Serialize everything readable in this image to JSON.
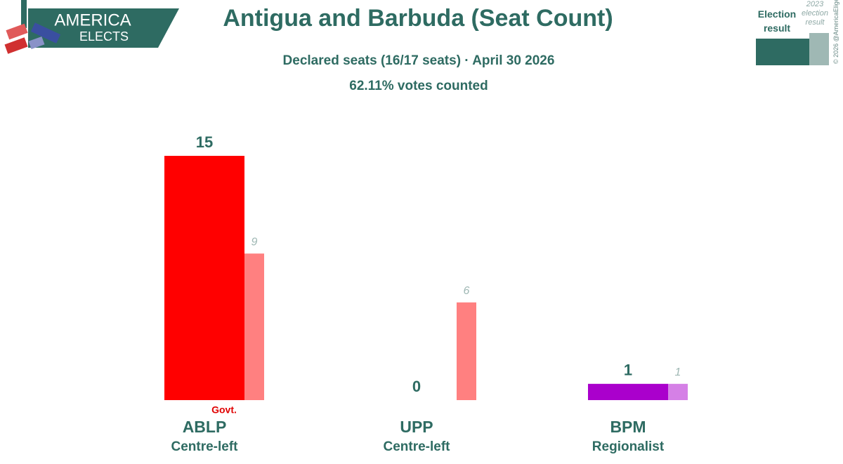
{
  "logo": {
    "line1": "AMERICA",
    "line2": "ELECTS"
  },
  "copyright": "© 2026 @AmericaElige",
  "chart_data": {
    "type": "bar",
    "title": "Antigua and Barbuda (Seat Count)",
    "subtitle": "Declared seats (16/17 seats) · April 30 2026",
    "subtitle2": "62.11% votes counted",
    "categories": [
      "ABLP",
      "UPP",
      "BPM"
    ],
    "descriptions": [
      "Centre-left",
      "Centre-left",
      "Regionalist"
    ],
    "annotation": "Govt.",
    "ylim": [
      0,
      15
    ],
    "series": [
      {
        "name": "Election result",
        "colors": [
          "#ff0000",
          "#ff0000",
          "#aa00cc"
        ],
        "color": "#2e6b62",
        "values": [
          15,
          0,
          1
        ]
      },
      {
        "name": "2023 election result",
        "colors": [
          "#ff8080",
          "#ff8080",
          "#d580e6"
        ],
        "color": "#9fb8b4",
        "values": [
          9,
          6,
          1
        ]
      }
    ]
  }
}
